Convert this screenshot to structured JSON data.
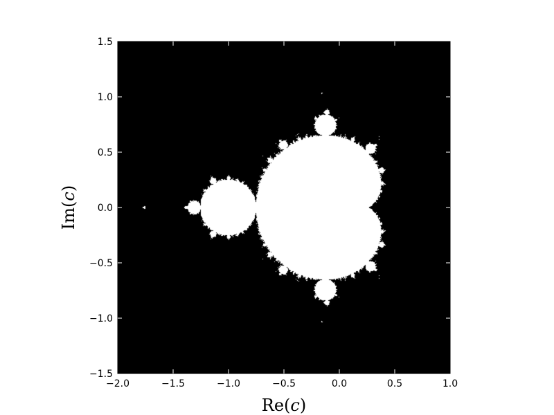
{
  "chart_data": {
    "type": "heatmap",
    "description_set": "mandelbrot",
    "xlabel": "Re(c)",
    "ylabel": "Im(c)",
    "xlim": [
      -2.0,
      1.0
    ],
    "ylim": [
      -1.5,
      1.5
    ],
    "x_ticks": [
      -2.0,
      -1.5,
      -1.0,
      -0.5,
      0.0,
      0.5,
      1.0
    ],
    "y_ticks": [
      -1.5,
      -1.0,
      -0.5,
      0.0,
      0.5,
      1.0,
      1.5
    ],
    "x_tick_labels": [
      "−2.0",
      "−1.5",
      "−1.0",
      "−0.5",
      "0.0",
      "0.5",
      "1.0"
    ],
    "y_tick_labels": [
      "−1.5",
      "−1.0",
      "−0.5",
      "0.0",
      "0.5",
      "1.0",
      "1.5"
    ],
    "grid": false,
    "legend": "none",
    "colors": {
      "inside_set": "#ffffff",
      "outside_set": "#000000"
    }
  }
}
